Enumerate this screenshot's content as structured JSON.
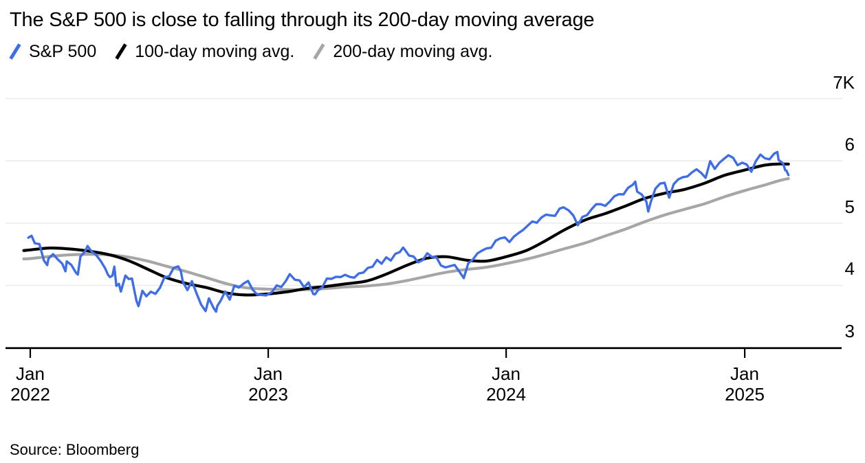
{
  "title": "The S&P 500 is close to falling through its 200-day moving average",
  "source": "Source: Bloomberg",
  "chart_data": {
    "type": "line",
    "title": "The S&P 500 is close to falling through its 200-day moving average",
    "x_unit": "days since 2022-01-01",
    "x_ticks": [
      {
        "day": 0,
        "month": "Jan",
        "year": "2022"
      },
      {
        "day": 365,
        "month": "Jan",
        "year": "2023"
      },
      {
        "day": 730,
        "month": "Jan",
        "year": "2024"
      },
      {
        "day": 1096,
        "month": "Jan",
        "year": "2025"
      }
    ],
    "y_axis": {
      "side": "right",
      "min": 3000,
      "max": 7000,
      "gridlines": [
        4000,
        5000,
        6000,
        7000
      ],
      "labels": [
        {
          "value": 7000,
          "text": "7K"
        },
        {
          "value": 6000,
          "text": "6"
        },
        {
          "value": 5000,
          "text": "5"
        },
        {
          "value": 4000,
          "text": "4"
        },
        {
          "value": 3000,
          "text": "3"
        }
      ]
    },
    "grid_color": "#e9e9e9",
    "axis_color": "#000000",
    "series": [
      {
        "name": "200-day moving avg.",
        "color": "#a6a6a6",
        "width": 4.2,
        "smooth": true,
        "points": [
          [
            -10,
            4425
          ],
          [
            0,
            4430
          ],
          [
            30,
            4465
          ],
          [
            60,
            4490
          ],
          [
            90,
            4500
          ],
          [
            120,
            4490
          ],
          [
            150,
            4455
          ],
          [
            180,
            4390
          ],
          [
            210,
            4305
          ],
          [
            240,
            4220
          ],
          [
            270,
            4125
          ],
          [
            300,
            4030
          ],
          [
            330,
            3962
          ],
          [
            362,
            3940
          ],
          [
            396,
            3932
          ],
          [
            424,
            3930
          ],
          [
            455,
            3950
          ],
          [
            485,
            3975
          ],
          [
            516,
            3990
          ],
          [
            546,
            4020
          ],
          [
            577,
            4075
          ],
          [
            608,
            4145
          ],
          [
            638,
            4210
          ],
          [
            669,
            4255
          ],
          [
            699,
            4290
          ],
          [
            730,
            4350
          ],
          [
            761,
            4420
          ],
          [
            790,
            4500
          ],
          [
            820,
            4590
          ],
          [
            851,
            4680
          ],
          [
            881,
            4790
          ],
          [
            912,
            4900
          ],
          [
            942,
            5020
          ],
          [
            973,
            5130
          ],
          [
            1003,
            5220
          ],
          [
            1034,
            5310
          ],
          [
            1064,
            5420
          ],
          [
            1095,
            5520
          ],
          [
            1126,
            5610
          ],
          [
            1148,
            5680
          ],
          [
            1163,
            5715
          ]
        ]
      },
      {
        "name": "100-day moving avg.",
        "color": "#000000",
        "width": 4.2,
        "smooth": true,
        "points": [
          [
            -10,
            4560
          ],
          [
            0,
            4570
          ],
          [
            30,
            4600
          ],
          [
            60,
            4585
          ],
          [
            90,
            4550
          ],
          [
            120,
            4495
          ],
          [
            150,
            4400
          ],
          [
            180,
            4260
          ],
          [
            210,
            4120
          ],
          [
            240,
            4030
          ],
          [
            270,
            3965
          ],
          [
            300,
            3880
          ],
          [
            330,
            3845
          ],
          [
            362,
            3860
          ],
          [
            396,
            3900
          ],
          [
            424,
            3950
          ],
          [
            455,
            3985
          ],
          [
            485,
            4025
          ],
          [
            516,
            4070
          ],
          [
            546,
            4180
          ],
          [
            577,
            4320
          ],
          [
            608,
            4435
          ],
          [
            638,
            4460
          ],
          [
            669,
            4405
          ],
          [
            699,
            4390
          ],
          [
            730,
            4460
          ],
          [
            761,
            4560
          ],
          [
            790,
            4715
          ],
          [
            820,
            4895
          ],
          [
            851,
            5050
          ],
          [
            881,
            5150
          ],
          [
            912,
            5270
          ],
          [
            942,
            5395
          ],
          [
            973,
            5480
          ],
          [
            1003,
            5540
          ],
          [
            1034,
            5640
          ],
          [
            1064,
            5765
          ],
          [
            1095,
            5850
          ],
          [
            1126,
            5930
          ],
          [
            1148,
            5950
          ],
          [
            1163,
            5948
          ]
        ]
      },
      {
        "name": "S&P 500",
        "color": "#3f6de6",
        "width": 3.4,
        "smooth": false,
        "points": [
          [
            -3,
            4766
          ],
          [
            2,
            4797
          ],
          [
            7,
            4677
          ],
          [
            14,
            4663
          ],
          [
            21,
            4398
          ],
          [
            26,
            4326
          ],
          [
            28,
            4432
          ],
          [
            35,
            4501
          ],
          [
            42,
            4419
          ],
          [
            49,
            4349
          ],
          [
            54,
            4226
          ],
          [
            56,
            4385
          ],
          [
            63,
            4329
          ],
          [
            70,
            4204
          ],
          [
            73,
            4173
          ],
          [
            77,
            4463
          ],
          [
            84,
            4543
          ],
          [
            88,
            4631
          ],
          [
            94,
            4546
          ],
          [
            101,
            4488
          ],
          [
            108,
            4393
          ],
          [
            115,
            4272
          ],
          [
            119,
            4175
          ],
          [
            122,
            4132
          ],
          [
            126,
            4155
          ],
          [
            129,
            4300
          ],
          [
            132,
            3991
          ],
          [
            136,
            4024
          ],
          [
            139,
            3901
          ],
          [
            146,
            4158
          ],
          [
            151,
            4101
          ],
          [
            156,
            4109
          ],
          [
            160,
            3901
          ],
          [
            163,
            3750
          ],
          [
            166,
            3667
          ],
          [
            172,
            3912
          ],
          [
            178,
            3825
          ],
          [
            185,
            3899
          ],
          [
            192,
            3863
          ],
          [
            199,
            3962
          ],
          [
            206,
            4130
          ],
          [
            213,
            4145
          ],
          [
            220,
            4280
          ],
          [
            227,
            4305
          ],
          [
            231,
            4228
          ],
          [
            234,
            4058
          ],
          [
            241,
            3924
          ],
          [
            248,
            4067
          ],
          [
            255,
            3873
          ],
          [
            262,
            3693
          ],
          [
            269,
            3586
          ],
          [
            274,
            3791
          ],
          [
            281,
            3640
          ],
          [
            285,
            3577
          ],
          [
            287,
            3670
          ],
          [
            292,
            3753
          ],
          [
            299,
            3901
          ],
          [
            306,
            3770
          ],
          [
            313,
            3993
          ],
          [
            320,
            3965
          ],
          [
            327,
            4026
          ],
          [
            334,
            4072
          ],
          [
            341,
            3934
          ],
          [
            348,
            3852
          ],
          [
            355,
            3845
          ],
          [
            362,
            3839
          ],
          [
            371,
            3895
          ],
          [
            378,
            3999
          ],
          [
            385,
            3973
          ],
          [
            392,
            4071
          ],
          [
            398,
            4180
          ],
          [
            402,
            4136
          ],
          [
            406,
            4090
          ],
          [
            413,
            4079
          ],
          [
            420,
            3970
          ],
          [
            427,
            4046
          ],
          [
            434,
            3862
          ],
          [
            437,
            3856
          ],
          [
            441,
            3917
          ],
          [
            448,
            3971
          ],
          [
            455,
            4109
          ],
          [
            462,
            4105
          ],
          [
            469,
            4138
          ],
          [
            476,
            4134
          ],
          [
            483,
            4169
          ],
          [
            490,
            4136
          ],
          [
            497,
            4124
          ],
          [
            504,
            4192
          ],
          [
            511,
            4205
          ],
          [
            518,
            4282
          ],
          [
            525,
            4299
          ],
          [
            532,
            4410
          ],
          [
            539,
            4348
          ],
          [
            546,
            4450
          ],
          [
            553,
            4399
          ],
          [
            560,
            4505
          ],
          [
            567,
            4536
          ],
          [
            572,
            4607
          ],
          [
            574,
            4582
          ],
          [
            581,
            4478
          ],
          [
            588,
            4464
          ],
          [
            595,
            4370
          ],
          [
            602,
            4406
          ],
          [
            609,
            4516
          ],
          [
            616,
            4457
          ],
          [
            623,
            4450
          ],
          [
            630,
            4320
          ],
          [
            637,
            4288
          ],
          [
            644,
            4309
          ],
          [
            651,
            4328
          ],
          [
            658,
            4224
          ],
          [
            665,
            4117
          ],
          [
            672,
            4358
          ],
          [
            679,
            4415
          ],
          [
            686,
            4514
          ],
          [
            693,
            4559
          ],
          [
            700,
            4595
          ],
          [
            707,
            4604
          ],
          [
            714,
            4719
          ],
          [
            721,
            4755
          ],
          [
            728,
            4770
          ],
          [
            735,
            4697
          ],
          [
            742,
            4784
          ],
          [
            749,
            4840
          ],
          [
            756,
            4891
          ],
          [
            763,
            4959
          ],
          [
            770,
            5027
          ],
          [
            777,
            5006
          ],
          [
            784,
            5089
          ],
          [
            791,
            5137
          ],
          [
            798,
            5124
          ],
          [
            805,
            5117
          ],
          [
            812,
            5234
          ],
          [
            818,
            5254
          ],
          [
            826,
            5204
          ],
          [
            833,
            5123
          ],
          [
            840,
            4967
          ],
          [
            847,
            5100
          ],
          [
            854,
            5128
          ],
          [
            861,
            5223
          ],
          [
            868,
            5303
          ],
          [
            875,
            5305
          ],
          [
            882,
            5277
          ],
          [
            889,
            5347
          ],
          [
            896,
            5432
          ],
          [
            903,
            5465
          ],
          [
            910,
            5461
          ],
          [
            917,
            5567
          ],
          [
            924,
            5615
          ],
          [
            928,
            5667
          ],
          [
            931,
            5505
          ],
          [
            938,
            5459
          ],
          [
            945,
            5347
          ],
          [
            948,
            5186
          ],
          [
            952,
            5344
          ],
          [
            959,
            5554
          ],
          [
            966,
            5635
          ],
          [
            973,
            5648
          ],
          [
            980,
            5408
          ],
          [
            987,
            5626
          ],
          [
            994,
            5703
          ],
          [
            1001,
            5738
          ],
          [
            1008,
            5751
          ],
          [
            1015,
            5815
          ],
          [
            1022,
            5865
          ],
          [
            1029,
            5808
          ],
          [
            1036,
            5729
          ],
          [
            1043,
            5996
          ],
          [
            1050,
            5871
          ],
          [
            1057,
            5969
          ],
          [
            1064,
            6032
          ],
          [
            1071,
            6090
          ],
          [
            1078,
            6051
          ],
          [
            1085,
            5931
          ],
          [
            1092,
            5971
          ],
          [
            1099,
            5942
          ],
          [
            1106,
            5827
          ],
          [
            1113,
            5997
          ],
          [
            1120,
            6101
          ],
          [
            1127,
            6041
          ],
          [
            1134,
            6026
          ],
          [
            1141,
            6115
          ],
          [
            1146,
            6144
          ],
          [
            1148,
            6013
          ],
          [
            1152,
            5983
          ],
          [
            1155,
            5955
          ],
          [
            1158,
            5850
          ],
          [
            1160,
            5843
          ],
          [
            1163,
            5770
          ]
        ]
      }
    ],
    "legend_position": "top-left",
    "grid": true
  }
}
